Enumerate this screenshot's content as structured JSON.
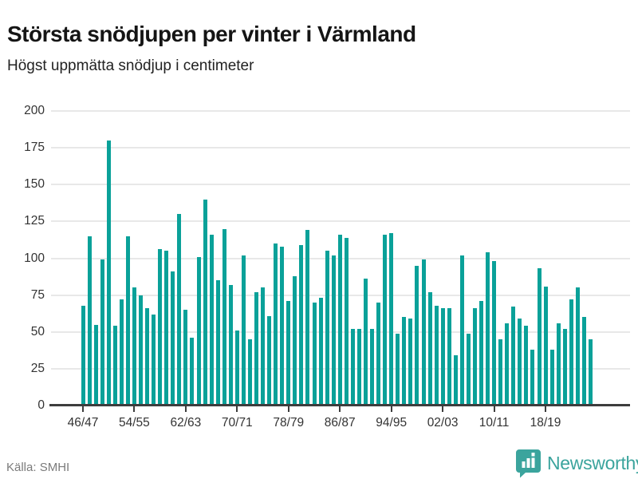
{
  "header": {
    "title": "Största snödjupen per vinter i Värmland",
    "subtitle": "Högst uppmätta snödjup i centimeter"
  },
  "footer": {
    "source_label": "Källa: SMHI",
    "brand_name": "Newsworthy"
  },
  "colors": {
    "bar": "#0aa199",
    "gridline": "#e8e8e8",
    "axis": "#3d3d3d",
    "brand_teal": "#3ba49d"
  },
  "icons": {
    "brand_badge": "newsworthy-bar-chart-badge"
  },
  "chart_data": {
    "type": "bar",
    "title": "Största snödjupen per vinter i Värmland",
    "subtitle": "Högst uppmätta snödjup i centimeter",
    "unit": "cm",
    "source": "SMHI",
    "grid": true,
    "legend_position": "none",
    "ylim": [
      0,
      200
    ],
    "yticks": [
      0,
      25,
      50,
      75,
      100,
      125,
      150,
      175,
      200
    ],
    "xlabel": "",
    "ylabel": "",
    "x_tick_indices": [
      0,
      8,
      16,
      24,
      32,
      40,
      48,
      56,
      64,
      72
    ],
    "x_tick_labels": [
      "46/47",
      "54/55",
      "62/63",
      "70/71",
      "78/79",
      "86/87",
      "94/95",
      "02/03",
      "10/11",
      "18/19"
    ],
    "x": [
      "46/47",
      "47/48",
      "48/49",
      "49/50",
      "50/51",
      "51/52",
      "52/53",
      "53/54",
      "54/55",
      "55/56",
      "56/57",
      "57/58",
      "58/59",
      "59/60",
      "60/61",
      "61/62",
      "62/63",
      "63/64",
      "64/65",
      "65/66",
      "66/67",
      "67/68",
      "68/69",
      "69/70",
      "70/71",
      "71/72",
      "72/73",
      "73/74",
      "74/75",
      "75/76",
      "76/77",
      "77/78",
      "78/79",
      "79/80",
      "80/81",
      "81/82",
      "82/83",
      "83/84",
      "84/85",
      "85/86",
      "86/87",
      "87/88",
      "88/89",
      "89/90",
      "90/91",
      "91/92",
      "92/93",
      "93/94",
      "94/95",
      "95/96",
      "96/97",
      "97/98",
      "98/99",
      "99/00",
      "00/01",
      "01/02",
      "02/03",
      "03/04",
      "04/05",
      "05/06",
      "06/07",
      "07/08",
      "08/09",
      "09/10",
      "10/11",
      "11/12",
      "12/13",
      "13/14",
      "14/15",
      "15/16",
      "16/17",
      "17/18",
      "18/19",
      "19/20",
      "20/21",
      "21/22",
      "22/23",
      "23/24",
      "24/25",
      "25/26"
    ],
    "values": [
      68,
      115,
      55,
      99,
      180,
      54,
      72,
      115,
      80,
      75,
      66,
      62,
      106,
      105,
      91,
      130,
      65,
      46,
      101,
      140,
      116,
      85,
      120,
      82,
      51,
      102,
      45,
      77,
      80,
      61,
      110,
      108,
      71,
      88,
      109,
      119,
      70,
      73,
      105,
      102,
      116,
      114,
      52,
      52,
      86,
      52,
      70,
      116,
      117,
      49,
      60,
      59,
      95,
      99,
      77,
      68,
      66,
      66,
      34,
      102,
      49,
      66,
      71,
      104,
      98,
      45,
      56,
      67,
      59,
      54,
      38,
      93,
      81,
      38,
      56,
      52,
      72,
      80,
      60,
      45
    ]
  }
}
